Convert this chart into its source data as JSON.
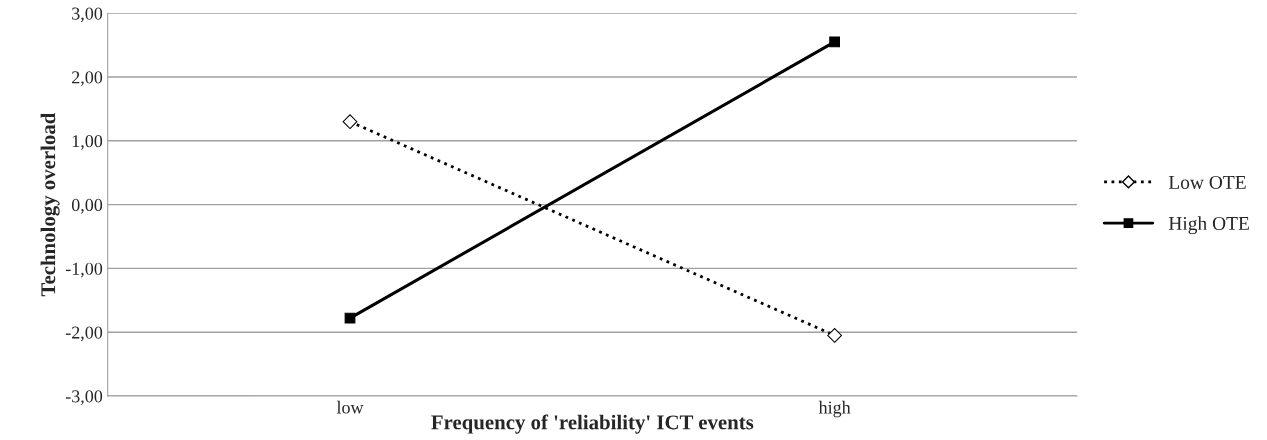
{
  "chart_data": {
    "type": "line",
    "xlabel": "Frequency of 'reliability' ICT events",
    "ylabel": "Technology overload",
    "categories": [
      "low",
      "high"
    ],
    "series": [
      {
        "name": "Low OTE",
        "color": "#000000",
        "values": [
          1.3,
          -2.05
        ],
        "marker": "diamond",
        "line_style": "dotted"
      },
      {
        "name": "High OTE",
        "color": "#000000",
        "values": [
          -1.78,
          2.55
        ],
        "marker": "square",
        "line_style": "solid"
      }
    ],
    "ylim": [
      -3,
      3
    ],
    "yticks": [
      {
        "value": -3,
        "label": "-3,00"
      },
      {
        "value": -2,
        "label": "-2,00"
      },
      {
        "value": -1,
        "label": "-1,00"
      },
      {
        "value": 0,
        "label": "0,00"
      },
      {
        "value": 1,
        "label": "1,00"
      },
      {
        "value": 2,
        "label": "2,00"
      },
      {
        "value": 3,
        "label": "3,00"
      }
    ],
    "grid": "y",
    "legend": "right"
  }
}
